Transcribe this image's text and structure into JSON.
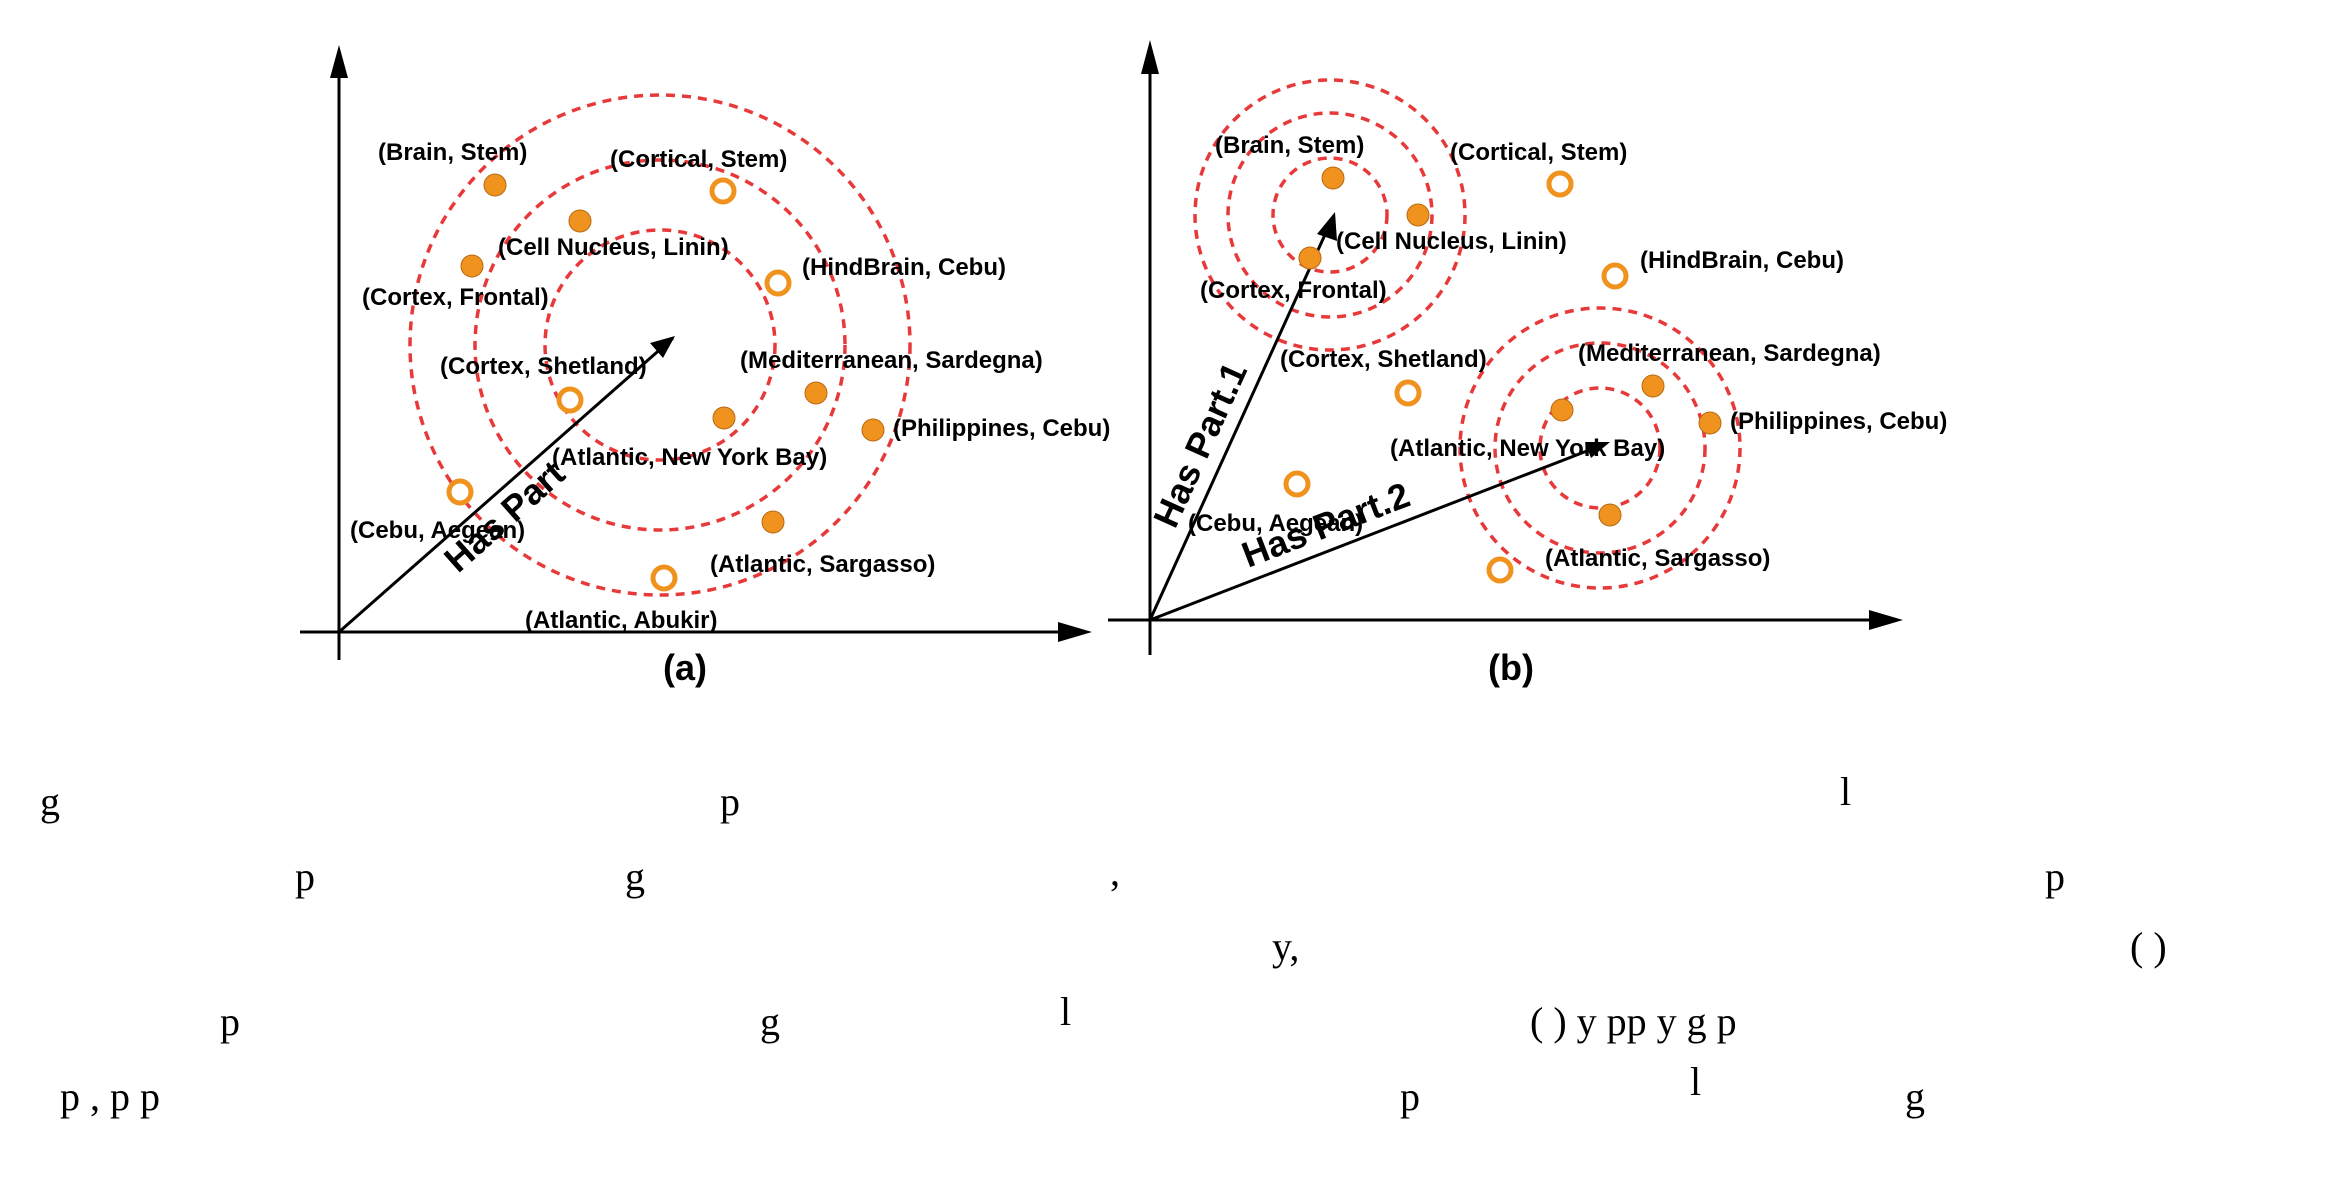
{
  "colors": {
    "point": "#F0921E",
    "ring": "#E8393A",
    "axis": "#000000"
  },
  "panel_a": {
    "caption": "(a)",
    "vector_label": "Has Part",
    "labels": {
      "brain_stem": "(Brain,  Stem)",
      "cortical_stem": "(Cortical,  Stem)",
      "cell_nucleus": "(Cell Nucleus,  Linin)",
      "hindbrain_cebu": "(HindBrain,  Cebu)",
      "cortex_frontal": "(Cortex,  Frontal)",
      "cortex_shetland": "(Cortex,  Shetland)",
      "mediterranean": "(Mediterranean,  Sardegna)",
      "philippines": "(Philippines,  Cebu)",
      "atlantic_nyb": "(Atlantic,  New York Bay)",
      "cebu_aegean": "(Cebu,  Aegean)",
      "atlantic_sargasso": "(Atlantic,  Sargasso)",
      "atlantic_abukir": "(Atlantic,  Abukir)"
    }
  },
  "panel_b": {
    "caption": "(b)",
    "vector_label_1": "Has Part.1",
    "vector_label_2": "Has Part.2",
    "labels": {
      "brain_stem": "(Brain,  Stem)",
      "cortical_stem": "(Cortical,  Stem)",
      "cell_nucleus": "(Cell Nucleus,  Linin)",
      "hindbrain_cebu": "(HindBrain,  Cebu)",
      "cortex_frontal": "(Cortex,  Frontal)",
      "cortex_shetland": "(Cortex,  Shetland)",
      "mediterranean": "(Mediterranean,  Sardegna)",
      "philippines": "(Philippines,  Cebu)",
      "atlantic_nyb": "(Atlantic,  New York Bay)",
      "cebu_aegean": "(Cebu,  Aegean)",
      "atlantic_sargasso": "(Atlantic,  Sargasso)"
    }
  },
  "text_fragments": {
    "f1": "g",
    "f2": "p",
    "f3": "l",
    "f4": "p",
    "f5": "g",
    "f6": ",",
    "f7": "p",
    "f8": "y,",
    "f9": "( )",
    "f10": "p",
    "f11": "g",
    "f12": "l",
    "f13": "( )  y  pp y g  p",
    "f14": "p   ,   p p",
    "f15": "p",
    "f16": "l",
    "f17": "g"
  }
}
